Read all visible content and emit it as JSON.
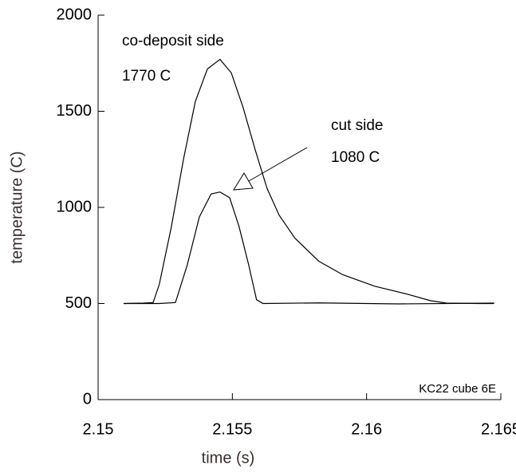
{
  "chart_data": {
    "type": "line",
    "xlabel": "time (s)",
    "ylabel": "temperature (C)",
    "xlim": [
      2.15,
      2.165
    ],
    "xticks": [
      2.15,
      2.155,
      2.16,
      2.165
    ],
    "ylim": [
      0,
      2000
    ],
    "yticks": [
      0,
      500,
      1000,
      1500,
      2000
    ],
    "annotations": [
      "co-deposit side",
      "1770 C",
      "cut side",
      "1080 C",
      "KC22 cube 6E"
    ],
    "series": [
      {
        "color": "#000000",
        "x": [
          2.15095,
          2.15169,
          2.15205,
          2.15228,
          2.15273,
          2.15318,
          2.15362,
          2.15407,
          2.15454,
          2.15496,
          2.1554,
          2.15585,
          2.15629,
          2.15674,
          2.15733,
          2.15822,
          2.15911,
          2.1603,
          2.16148,
          2.16237,
          2.16297,
          2.16415,
          2.16475
        ],
        "values": [
          500,
          502,
          505,
          600,
          900,
          1250,
          1550,
          1720,
          1770,
          1700,
          1520,
          1300,
          1100,
          960,
          840,
          720,
          650,
          590,
          550,
          515,
          502,
          500,
          500
        ]
      },
      {
        "color": "#000000",
        "x": [
          2.15095,
          2.15228,
          2.15288,
          2.15332,
          2.15377,
          2.15421,
          2.15454,
          2.1549,
          2.15525,
          2.15561,
          2.1559,
          2.15614,
          2.15822,
          2.16119,
          2.16475
        ],
        "values": [
          500,
          500,
          505,
          700,
          950,
          1070,
          1080,
          1050,
          900,
          700,
          520,
          500,
          503,
          498,
          502
        ]
      }
    ]
  }
}
